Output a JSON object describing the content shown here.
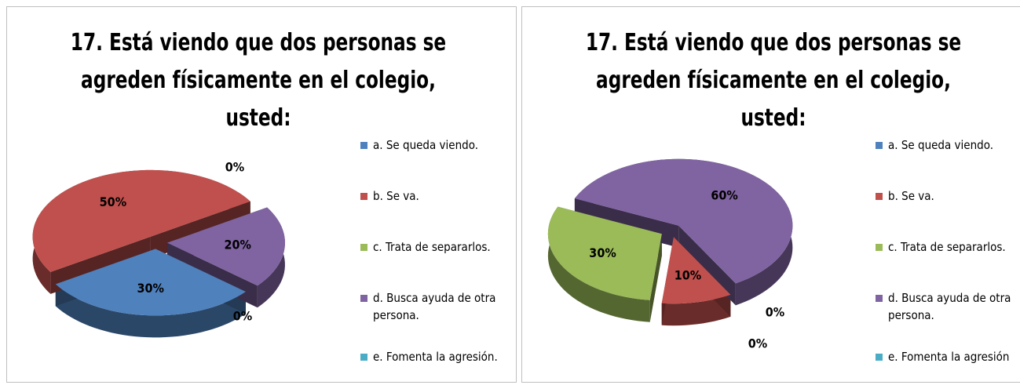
{
  "chart_data": [
    {
      "type": "pie",
      "title": "17.  Está viendo que  dos personas se agreden físicamente en el colegio, usted:",
      "categories": [
        "a.  Se queda viendo.",
        "b.  Se va.",
        "c.  Trata de separarlos.",
        "d.  Busca ayuda de otra persona.",
        "e.  Fomenta la agresión."
      ],
      "values": [
        30,
        50,
        0,
        20,
        0
      ],
      "value_labels": [
        "30%",
        "50%",
        "0%",
        "20%",
        "0%"
      ],
      "colors": [
        "#4f81bd",
        "#c0504d",
        "#9bbb59",
        "#8064a2",
        "#4bacc6"
      ],
      "legend": "right"
    },
    {
      "type": "pie",
      "title": "17.  Está viendo que  dos personas se agreden físicamente en el colegio, usted:",
      "categories": [
        "a.  Se queda viendo.",
        "b.  Se va.",
        "c.  Trata de separarlos.",
        "d.  Busca ayuda de otra persona.",
        "e.  Fomenta la agresión"
      ],
      "values": [
        0,
        10,
        30,
        60,
        0
      ],
      "value_labels": [
        "0%",
        "10%",
        "30%",
        "60%",
        "0%"
      ],
      "colors": [
        "#4f81bd",
        "#c0504d",
        "#9bbb59",
        "#8064a2",
        "#4bacc6"
      ],
      "legend": "right"
    }
  ]
}
